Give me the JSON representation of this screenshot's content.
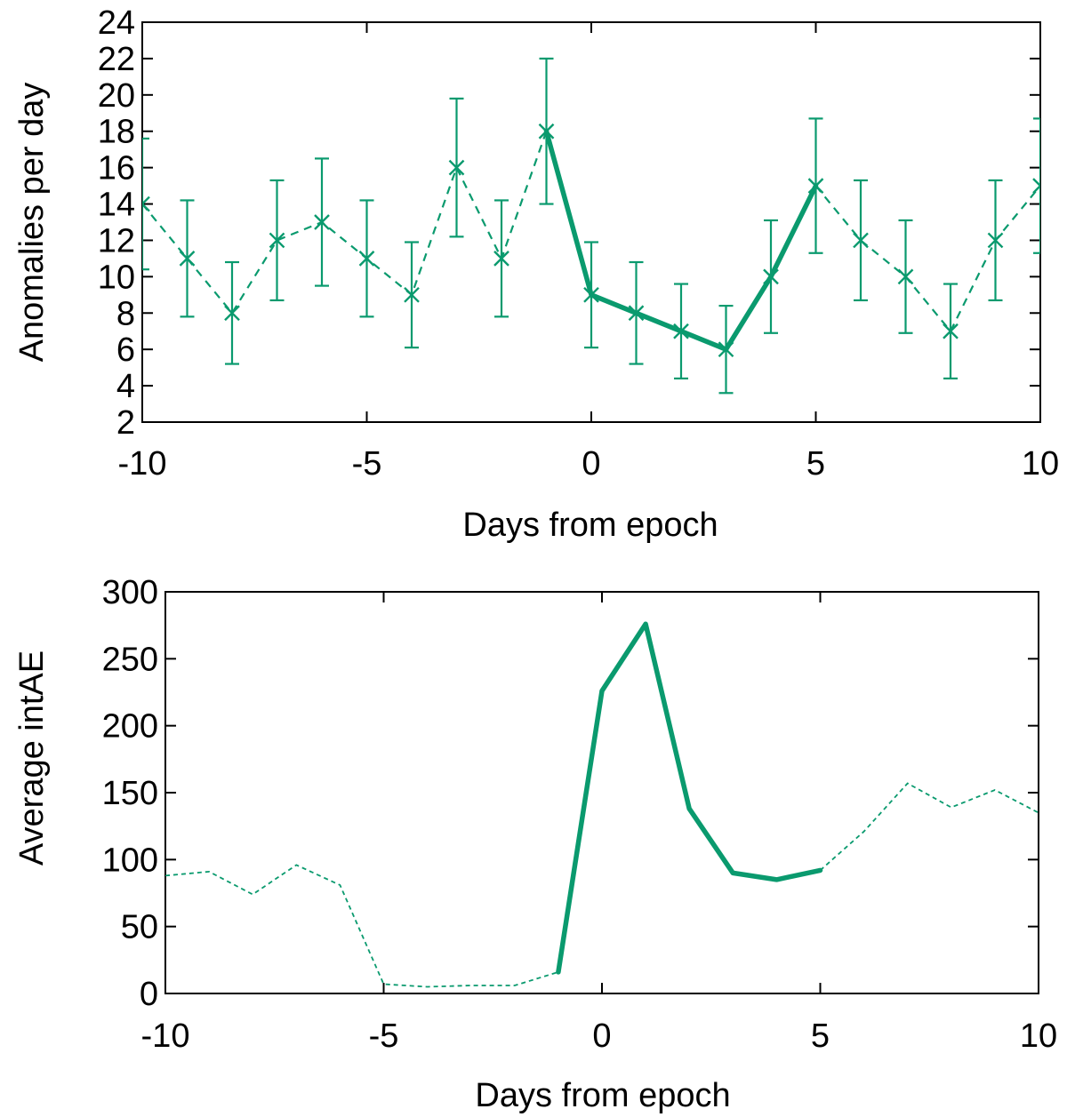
{
  "colors": {
    "series": "#0a9a6e",
    "axis": "#000000",
    "background": "#ffffff"
  },
  "chart_data": [
    {
      "type": "line",
      "xlabel": "Days from epoch",
      "ylabel": "Anomalies per day",
      "xlim": [
        -10,
        10
      ],
      "ylim": [
        2,
        24
      ],
      "xticks": [
        -10,
        -5,
        0,
        5,
        10
      ],
      "yticks": [
        2,
        4,
        6,
        8,
        10,
        12,
        14,
        16,
        18,
        20,
        22,
        24
      ],
      "grid": false,
      "marker": "x",
      "error_bars": true,
      "solid_segment_x_range": [
        -1,
        5
      ],
      "x": [
        -10,
        -9,
        -8,
        -7,
        -6,
        -5,
        -4,
        -3,
        -2,
        -1,
        0,
        1,
        2,
        3,
        4,
        5,
        6,
        7,
        8,
        9,
        10
      ],
      "y": [
        14,
        11,
        8,
        12,
        13,
        11,
        9,
        16,
        11,
        18,
        9,
        8,
        7,
        6,
        10,
        15,
        12,
        10,
        7,
        12,
        15
      ],
      "err_low": [
        10.4,
        7.8,
        5.2,
        8.7,
        9.5,
        7.8,
        6.1,
        12.2,
        7.8,
        14,
        6.1,
        5.2,
        4.4,
        3.6,
        6.9,
        11.3,
        8.7,
        6.9,
        4.4,
        8.7,
        11.3
      ],
      "err_high": [
        17.6,
        14.2,
        10.8,
        15.3,
        16.5,
        14.2,
        11.9,
        19.8,
        14.2,
        22,
        11.9,
        10.8,
        9.6,
        8.4,
        13.1,
        18.7,
        15.3,
        13.1,
        9.6,
        15.3,
        18.7
      ]
    },
    {
      "type": "line",
      "xlabel": "Days from epoch",
      "ylabel": "Average intAE",
      "xlim": [
        -10,
        10
      ],
      "ylim": [
        0,
        300
      ],
      "xticks": [
        -10,
        -5,
        0,
        5,
        10
      ],
      "yticks": [
        0,
        50,
        100,
        150,
        200,
        250,
        300
      ],
      "grid": false,
      "solid_segment_x_range": [
        -1,
        5
      ],
      "x": [
        -10,
        -9,
        -8,
        -7,
        -6,
        -5,
        -4,
        -3,
        -2,
        -1,
        0,
        1,
        2,
        3,
        4,
        5,
        6,
        7,
        8,
        9,
        10
      ],
      "y": [
        88,
        91,
        74,
        96,
        81,
        7,
        5,
        6,
        6,
        16,
        226,
        276,
        138,
        90,
        85,
        92,
        121,
        157,
        139,
        152,
        135
      ]
    }
  ]
}
